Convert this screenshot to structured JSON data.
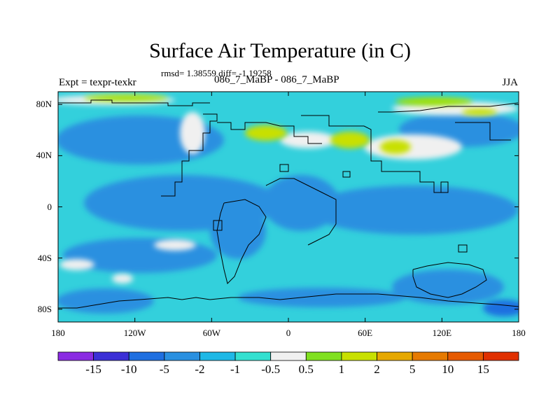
{
  "title": "Surface Air Temperature (in C)",
  "stats": "rmsd= 1.38559 diff= -1.19258",
  "experiment": {
    "left_label": "Expt = texpr-texkr",
    "center_label": "086_7_MaBP - 086_7_MaBP",
    "season": "JJA"
  },
  "axes": {
    "lat_ticks": [
      "80N",
      "40N",
      "0",
      "40S",
      "80S"
    ],
    "lon_ticks": [
      "180",
      "120W",
      "60W",
      "0",
      "60E",
      "120E",
      "180"
    ]
  },
  "colorbar": {
    "labels": [
      "-15",
      "-10",
      "-5",
      "-2",
      "-1",
      "-0.5",
      "0.5",
      "1",
      "2",
      "5",
      "10",
      "15"
    ],
    "colors": [
      "#8a2be2",
      "#3b2fd6",
      "#1f6fe0",
      "#2a90e0",
      "#1eb8e6",
      "#33e0d0",
      "#f0f0f0",
      "#80e020",
      "#c8e000",
      "#e6a800",
      "#e67a00",
      "#e65a00",
      "#e03000"
    ]
  },
  "palette": {
    "ocean_base": "#33d0dc",
    "cool": "#2a90e0",
    "cold": "#1f6fe0",
    "neutral": "#f0f0f0",
    "warm": "#c8e000",
    "warm2": "#9ee000"
  }
}
